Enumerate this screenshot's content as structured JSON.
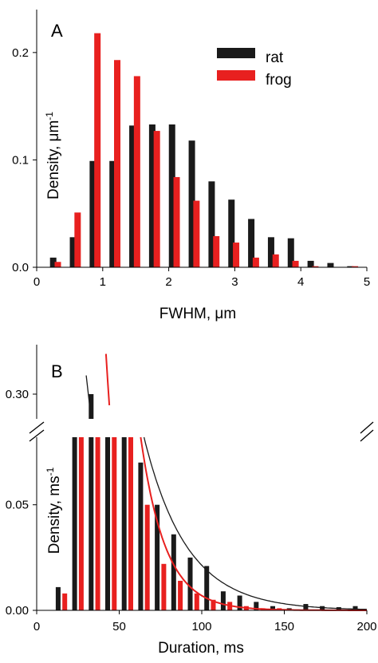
{
  "colors": {
    "rat": "#1a1a1a",
    "frog": "#e8201f",
    "axis": "#000000"
  },
  "chart_data": [
    {
      "type": "bar",
      "panel_label": "A",
      "xlabel": "FWHM, μm",
      "ylabel_main": "Density, μm",
      "ylabel_sup": "-1",
      "xlim": [
        0,
        5
      ],
      "ylim": [
        0,
        0.24
      ],
      "xticks": [
        0,
        1,
        2,
        3,
        4,
        5
      ],
      "yticks": [
        0.0,
        0.1,
        0.2
      ],
      "ytick_labels": [
        "0.0",
        "0.1",
        "0.2"
      ],
      "legend_position": "top-right",
      "series": [
        {
          "name": "rat",
          "color_key": "rat",
          "x": [
            0.25,
            0.55,
            0.85,
            1.15,
            1.45,
            1.75,
            2.05,
            2.35,
            2.65,
            2.95,
            3.25,
            3.55,
            3.85,
            4.15,
            4.45,
            4.75
          ],
          "values": [
            0.009,
            0.028,
            0.099,
            0.099,
            0.132,
            0.133,
            0.133,
            0.118,
            0.08,
            0.063,
            0.045,
            0.028,
            0.027,
            0.006,
            0.004,
            0.001
          ]
        },
        {
          "name": "frog",
          "color_key": "frog",
          "x": [
            0.32,
            0.62,
            0.92,
            1.22,
            1.52,
            1.82,
            2.12,
            2.42,
            2.72,
            3.02,
            3.32,
            3.62,
            3.92,
            4.22,
            4.52,
            4.82
          ],
          "values": [
            0.005,
            0.051,
            0.218,
            0.193,
            0.178,
            0.127,
            0.084,
            0.062,
            0.029,
            0.023,
            0.009,
            0.012,
            0.006,
            0.001,
            0.0,
            0.001
          ]
        }
      ]
    },
    {
      "type": "bar",
      "panel_label": "B",
      "xlabel": "Duration, ms",
      "ylabel_main": "Density, ms",
      "ylabel_sup": "-1",
      "xlim": [
        0,
        200
      ],
      "ylim_lower": [
        0,
        0.082
      ],
      "ylim_upper": [
        0.28,
        0.34
      ],
      "broken_axis": true,
      "xticks": [
        0,
        50,
        100,
        150,
        200
      ],
      "yticks_lower": [
        0.0,
        0.05
      ],
      "ytick_labels_lower": [
        "0.00",
        "0.05"
      ],
      "yticks_upper": [
        0.3
      ],
      "ytick_labels_upper": [
        "0.30"
      ],
      "series": [
        {
          "name": "rat",
          "color_key": "rat",
          "x": [
            13,
            23,
            33,
            43,
            53,
            63,
            73,
            83,
            93,
            103,
            113,
            123,
            133,
            143,
            153,
            163,
            173,
            183,
            193
          ],
          "values": [
            0.011,
            0.09,
            0.3,
            0.12,
            0.11,
            0.07,
            0.05,
            0.036,
            0.025,
            0.021,
            0.009,
            0.007,
            0.004,
            0.002,
            0.001,
            0.003,
            0.002,
            0.0015,
            0.002
          ]
        },
        {
          "name": "frog",
          "color_key": "frog",
          "x": [
            17,
            27,
            37,
            47,
            57,
            67,
            77,
            87,
            97,
            107,
            117,
            127,
            137,
            147,
            157,
            167,
            177,
            187,
            197
          ],
          "values": [
            0.008,
            0.09,
            0.09,
            0.09,
            0.09,
            0.05,
            0.022,
            0.014,
            0.008,
            0.005,
            0.004,
            0.002,
            0.001,
            0.001,
            0.0,
            0.0,
            0.0,
            0.0,
            0.0
          ]
        }
      ]
    }
  ]
}
